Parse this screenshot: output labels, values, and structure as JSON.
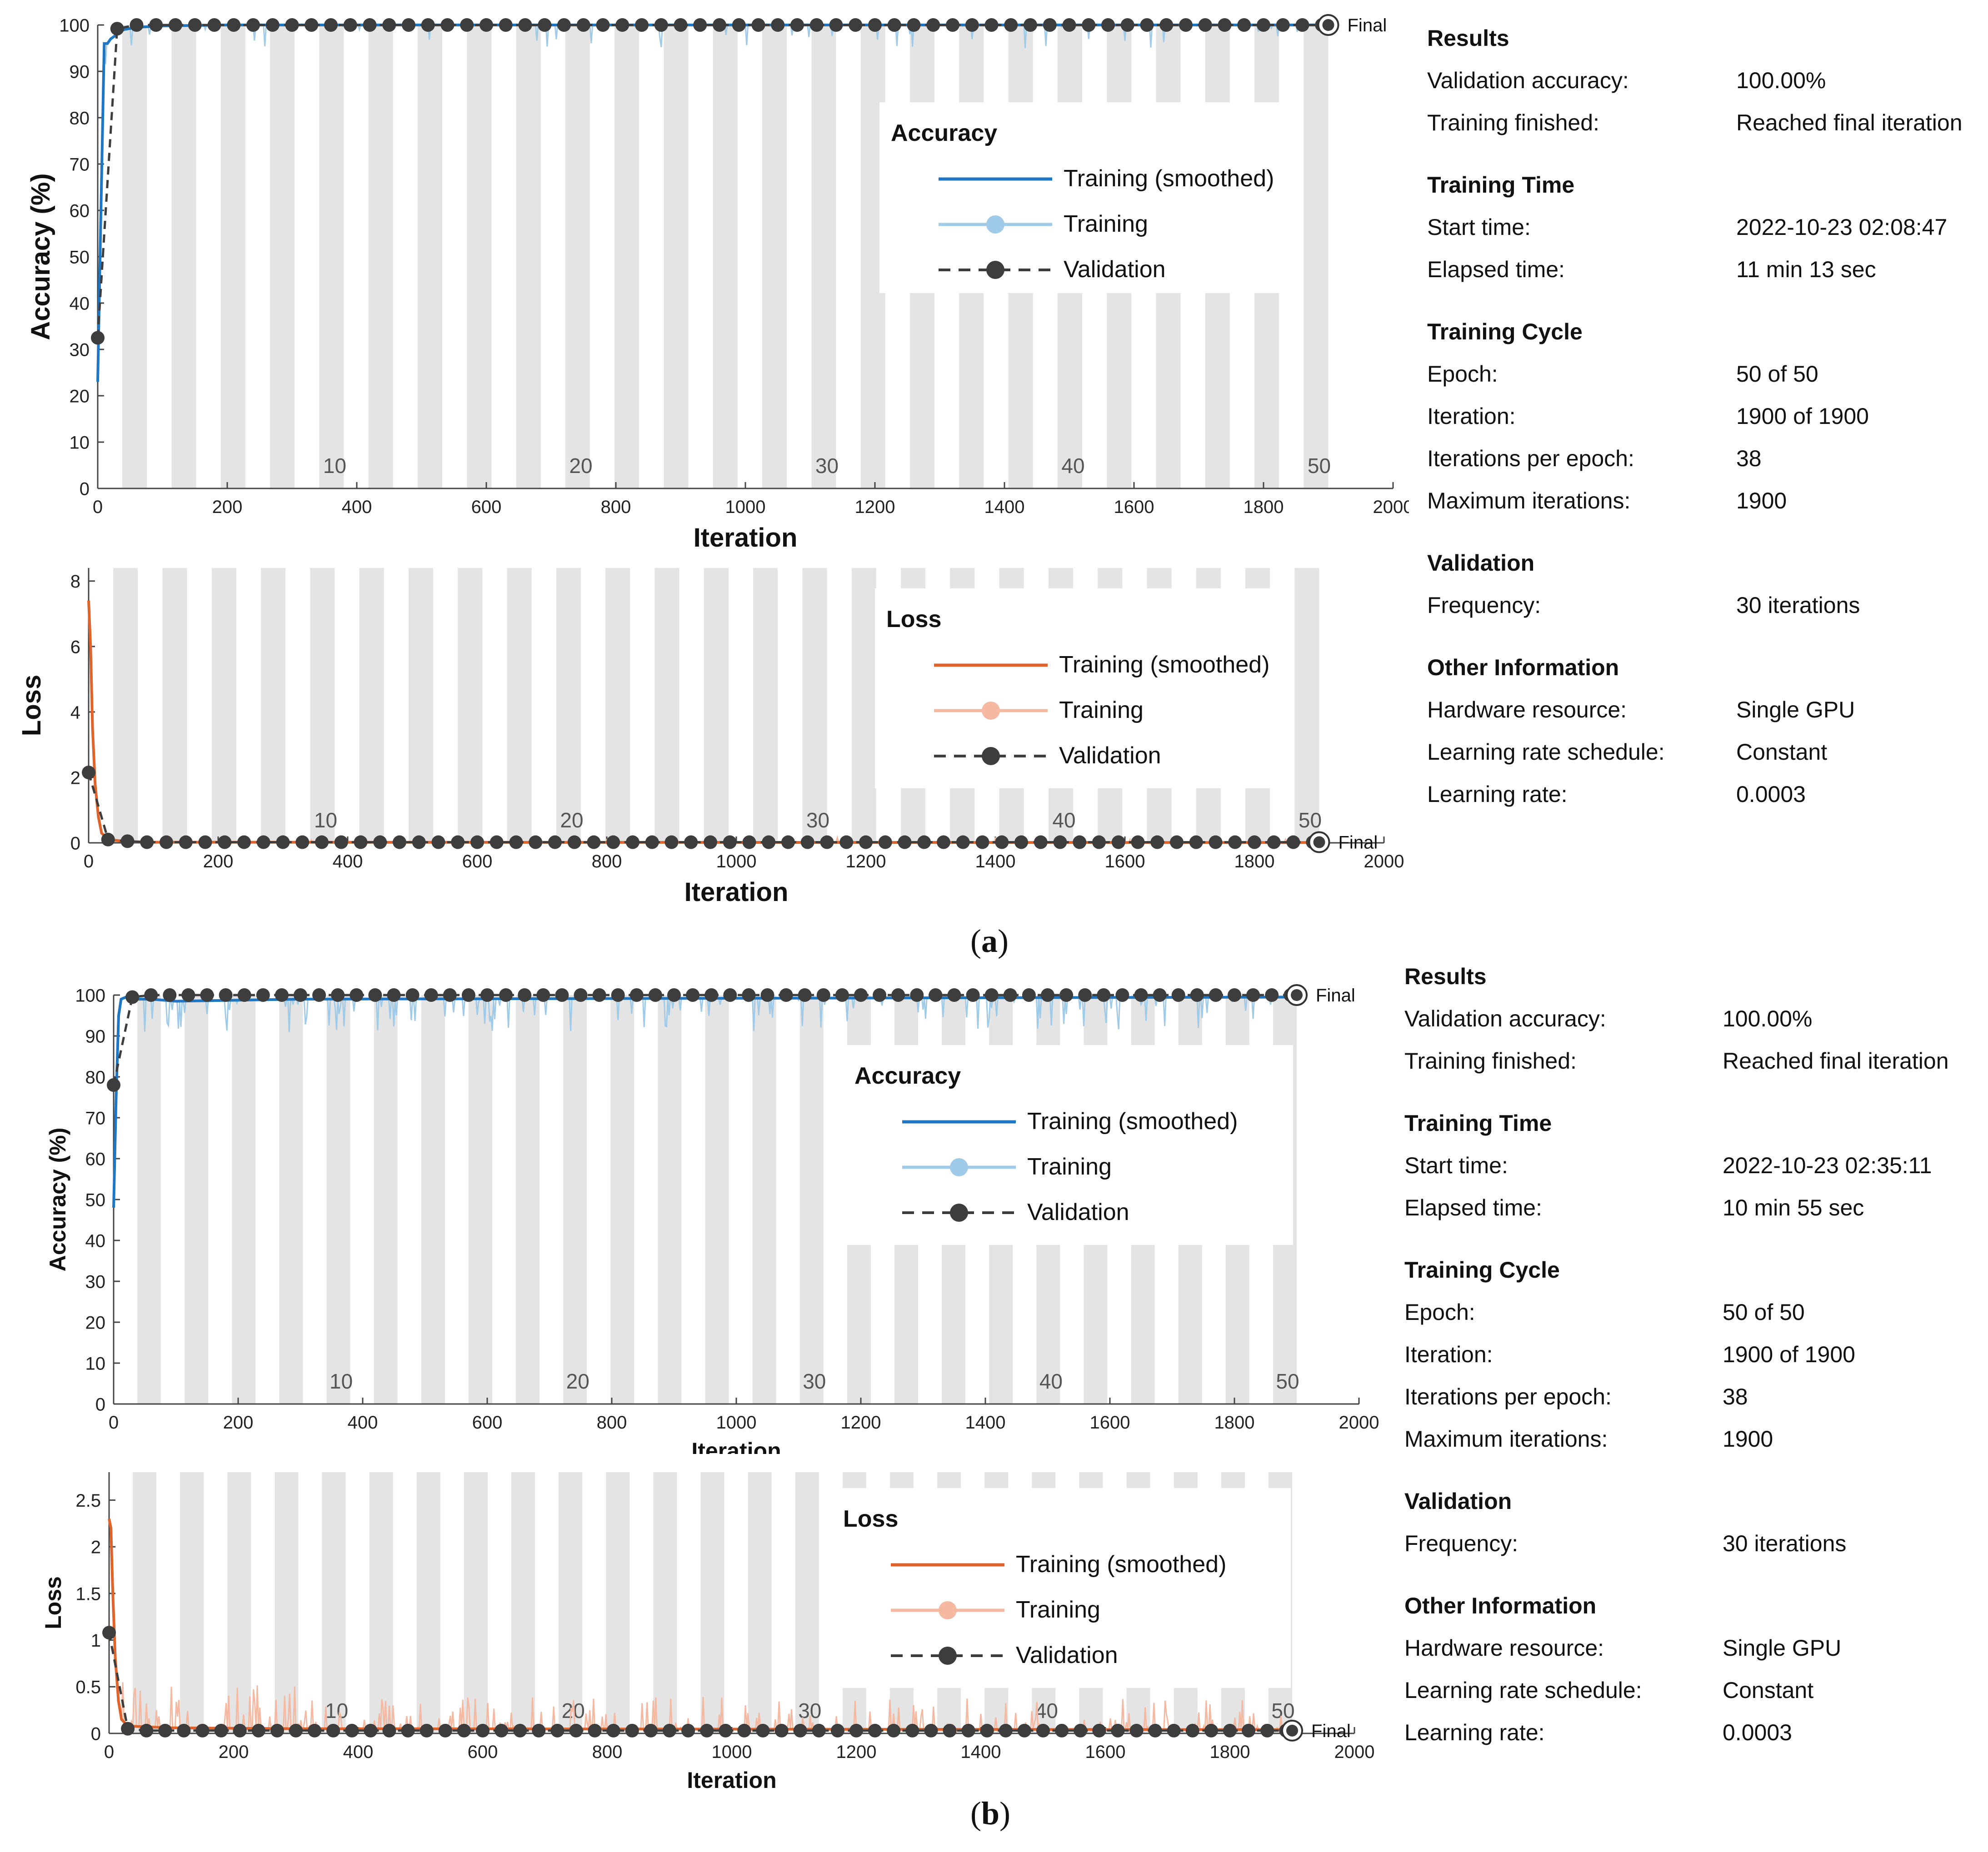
{
  "colors": {
    "acc_smoothed": "#1f77c4",
    "acc_training": "#9fcbe8",
    "loss_smoothed": "#e0632b",
    "loss_training": "#f4b9a0",
    "validation": "#3d3d3d",
    "epoch_band": "#e4e4e4"
  },
  "panels": [
    {
      "caption": "a",
      "charts": [
        {
          "id": "a-acc",
          "chart_data": {
            "type": "line",
            "metric": "accuracy",
            "ylabel": "Accuracy (%)",
            "xlabel": "Iteration",
            "xlim": [
              0,
              2000
            ],
            "ylim": [
              0,
              100
            ],
            "xticks": [
              0,
              200,
              400,
              600,
              800,
              1000,
              1200,
              1400,
              1600,
              1800,
              2000
            ],
            "yticks": [
              0,
              10,
              20,
              30,
              40,
              50,
              60,
              70,
              80,
              90,
              100
            ],
            "epoch_labels": [
              10,
              20,
              30,
              40,
              50
            ],
            "iterations_per_epoch": 38,
            "final_label": "Final",
            "legend": {
              "title": "Accuracy",
              "position": "upper-right",
              "entries": [
                "Training (smoothed)",
                "Training",
                "Validation"
              ]
            },
            "series": [
              {
                "name": "Training (smoothed)",
                "role": "smoothed",
                "x": [
                  0,
                  5,
                  10,
                  15,
                  20,
                  30,
                  40,
                  60,
                  100,
                  200,
                  1900
                ],
                "y": [
                  23,
                  60,
                  96,
                  96,
                  97,
                  98,
                  99,
                  99.5,
                  99.8,
                  100,
                  100
                ]
              },
              {
                "name": "Validation",
                "role": "validation",
                "x": [
                  0,
                  30,
                  60
                ],
                "y": [
                  32.5,
                  99.2,
                  100
                ],
                "repeat_to": 1900,
                "repeat_value": 100
              }
            ]
          }
        },
        {
          "id": "a-loss",
          "chart_data": {
            "type": "line",
            "metric": "loss",
            "ylabel": "Loss",
            "xlabel": "Iteration",
            "xlim": [
              0,
              2000
            ],
            "ylim": [
              0,
              8.4
            ],
            "xticks": [
              0,
              200,
              400,
              600,
              800,
              1000,
              1200,
              1400,
              1600,
              1800,
              2000
            ],
            "yticks": [
              0,
              2,
              4,
              6,
              8
            ],
            "epoch_labels": [
              10,
              20,
              30,
              40,
              50
            ],
            "iterations_per_epoch": 38,
            "final_label": "Final",
            "legend": {
              "title": "Loss",
              "position": "upper-right",
              "entries": [
                "Training (smoothed)",
                "Training",
                "Validation"
              ]
            },
            "series": [
              {
                "name": "Training (smoothed)",
                "role": "smoothed",
                "x": [
                  0,
                  3,
                  6,
                  10,
                  15,
                  20,
                  30,
                  60,
                  100,
                  1900
                ],
                "y": [
                  7.4,
                  6.0,
                  3.5,
                  1.8,
                  0.8,
                  0.3,
                  0.1,
                  0.04,
                  0.02,
                  0.01
                ]
              },
              {
                "name": "Validation",
                "role": "validation",
                "x": [
                  0,
                  30,
                  60
                ],
                "y": [
                  2.15,
                  0.1,
                  0.05
                ],
                "repeat_to": 1900,
                "repeat_value": 0.02
              }
            ]
          }
        }
      ],
      "info": {
        "sections": [
          {
            "title": "Results",
            "rows": [
              {
                "label": "Validation accuracy:",
                "value": "100.00%"
              },
              {
                "label": "Training finished:",
                "value": "Reached final iteration"
              }
            ]
          },
          {
            "title": "Training Time",
            "rows": [
              {
                "label": "Start time:",
                "value": "2022-10-23 02:08:47"
              },
              {
                "label": "Elapsed time:",
                "value": "11 min 13 sec"
              }
            ]
          },
          {
            "title": "Training Cycle",
            "rows": [
              {
                "label": "Epoch:",
                "value": "50 of 50"
              },
              {
                "label": "Iteration:",
                "value": "1900 of 1900"
              },
              {
                "label": "Iterations per epoch:",
                "value": "38"
              },
              {
                "label": "Maximum iterations:",
                "value": "1900"
              }
            ]
          },
          {
            "title": "Validation",
            "rows": [
              {
                "label": "Frequency:",
                "value": "30 iterations"
              }
            ]
          },
          {
            "title": "Other Information",
            "rows": [
              {
                "label": "Hardware resource:",
                "value": "Single GPU"
              },
              {
                "label": "Learning rate schedule:",
                "value": "Constant"
              },
              {
                "label": "Learning rate:",
                "value": "0.0003"
              }
            ]
          }
        ]
      }
    },
    {
      "caption": "b",
      "charts": [
        {
          "id": "b-acc",
          "chart_data": {
            "type": "line",
            "metric": "accuracy",
            "ylabel": "Accuracy (%)",
            "xlabel": "Iteration",
            "xlim": [
              0,
              2000
            ],
            "ylim": [
              0,
              100
            ],
            "xticks": [
              0,
              200,
              400,
              600,
              800,
              1000,
              1200,
              1400,
              1600,
              1800,
              2000
            ],
            "yticks": [
              0,
              10,
              20,
              30,
              40,
              50,
              60,
              70,
              80,
              90,
              100
            ],
            "epoch_labels": [
              10,
              20,
              30,
              40,
              50
            ],
            "iterations_per_epoch": 38,
            "final_label": "Final",
            "legend": {
              "title": "Accuracy",
              "position": "upper-right",
              "entries": [
                "Training (smoothed)",
                "Training",
                "Validation"
              ]
            },
            "series": [
              {
                "name": "Training (smoothed)",
                "role": "smoothed",
                "x": [
                  0,
                  4,
                  8,
                  12,
                  20,
                  30,
                  60,
                  100,
                  300,
                  1900
                ],
                "y": [
                  48,
                  75,
                  95,
                  99,
                  99.5,
                  99,
                  99,
                  98.5,
                  99,
                  99.5
                ]
              },
              {
                "name": "Validation",
                "role": "validation",
                "x": [
                  0,
                  30
                ],
                "y": [
                  78,
                  99.5
                ],
                "repeat_to": 1900,
                "repeat_value": 100
              }
            ]
          }
        },
        {
          "id": "b-loss",
          "chart_data": {
            "type": "line",
            "metric": "loss",
            "ylabel": "Loss",
            "xlabel": "Iteration",
            "xlim": [
              0,
              2000
            ],
            "ylim": [
              0,
              2.8
            ],
            "xticks": [
              0,
              200,
              400,
              600,
              800,
              1000,
              1200,
              1400,
              1600,
              1800,
              2000
            ],
            "yticks": [
              0,
              0.5,
              1,
              1.5,
              2,
              2.5
            ],
            "epoch_labels": [
              10,
              20,
              30,
              40,
              50
            ],
            "iterations_per_epoch": 38,
            "final_label": "Final",
            "legend": {
              "title": "Loss",
              "position": "upper-right",
              "entries": [
                "Training (smoothed)",
                "Training",
                "Validation"
              ]
            },
            "series": [
              {
                "name": "Training (smoothed)",
                "role": "smoothed",
                "x": [
                  0,
                  3,
                  6,
                  10,
                  15,
                  20,
                  30,
                  60,
                  100,
                  300,
                  1900
                ],
                "y": [
                  2.3,
                  2.2,
                  1.5,
                  0.8,
                  0.35,
                  0.15,
                  0.08,
                  0.07,
                  0.06,
                  0.05,
                  0.04
                ]
              },
              {
                "name": "Validation",
                "role": "validation",
                "x": [
                  0,
                  30
                ],
                "y": [
                  1.08,
                  0.05
                ],
                "repeat_to": 1900,
                "repeat_value": 0.03
              }
            ]
          }
        }
      ],
      "info": {
        "sections": [
          {
            "title": "Results",
            "rows": [
              {
                "label": "Validation accuracy:",
                "value": "100.00%"
              },
              {
                "label": "Training finished:",
                "value": "Reached final iteration"
              }
            ]
          },
          {
            "title": "Training Time",
            "rows": [
              {
                "label": "Start time:",
                "value": "2022-10-23 02:35:11"
              },
              {
                "label": "Elapsed time:",
                "value": "10 min 55 sec"
              }
            ]
          },
          {
            "title": "Training Cycle",
            "rows": [
              {
                "label": "Epoch:",
                "value": "50 of 50"
              },
              {
                "label": "Iteration:",
                "value": "1900 of 1900"
              },
              {
                "label": "Iterations per epoch:",
                "value": "38"
              },
              {
                "label": "Maximum iterations:",
                "value": "1900"
              }
            ]
          },
          {
            "title": "Validation",
            "rows": [
              {
                "label": "Frequency:",
                "value": "30 iterations"
              }
            ]
          },
          {
            "title": "Other Information",
            "rows": [
              {
                "label": "Hardware resource:",
                "value": "Single GPU"
              },
              {
                "label": "Learning rate schedule:",
                "value": "Constant"
              },
              {
                "label": "Learning rate:",
                "value": "0.0003"
              }
            ]
          }
        ]
      }
    }
  ]
}
